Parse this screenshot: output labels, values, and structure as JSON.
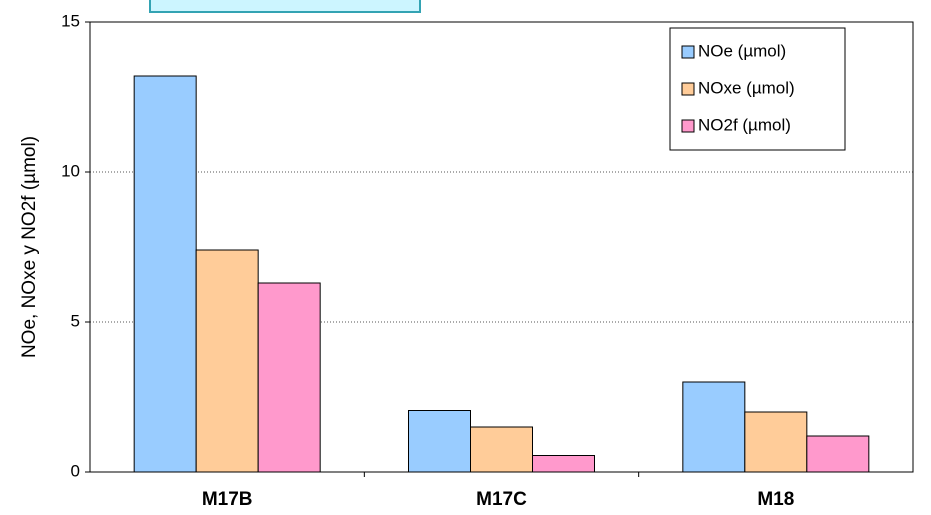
{
  "chart_data": {
    "type": "bar",
    "y_label": "NOe, NOxe y NO2f (µmol)",
    "categories": [
      "M17B",
      "M17C",
      "M18"
    ],
    "series": [
      {
        "name": "NOe (µmol)",
        "color": "#99ccff",
        "values": [
          13.2,
          2.05,
          3.0
        ]
      },
      {
        "name": "NOxe (µmol)",
        "color": "#ffcc99",
        "values": [
          7.4,
          1.5,
          2.0
        ]
      },
      {
        "name": "NO2f (µmol)",
        "color": "#ff99cc",
        "values": [
          6.3,
          0.55,
          1.2
        ]
      }
    ],
    "ylim": [
      0,
      15
    ],
    "yticks": [
      0,
      5,
      10,
      15
    ],
    "grid": true,
    "legend": "upper right"
  }
}
